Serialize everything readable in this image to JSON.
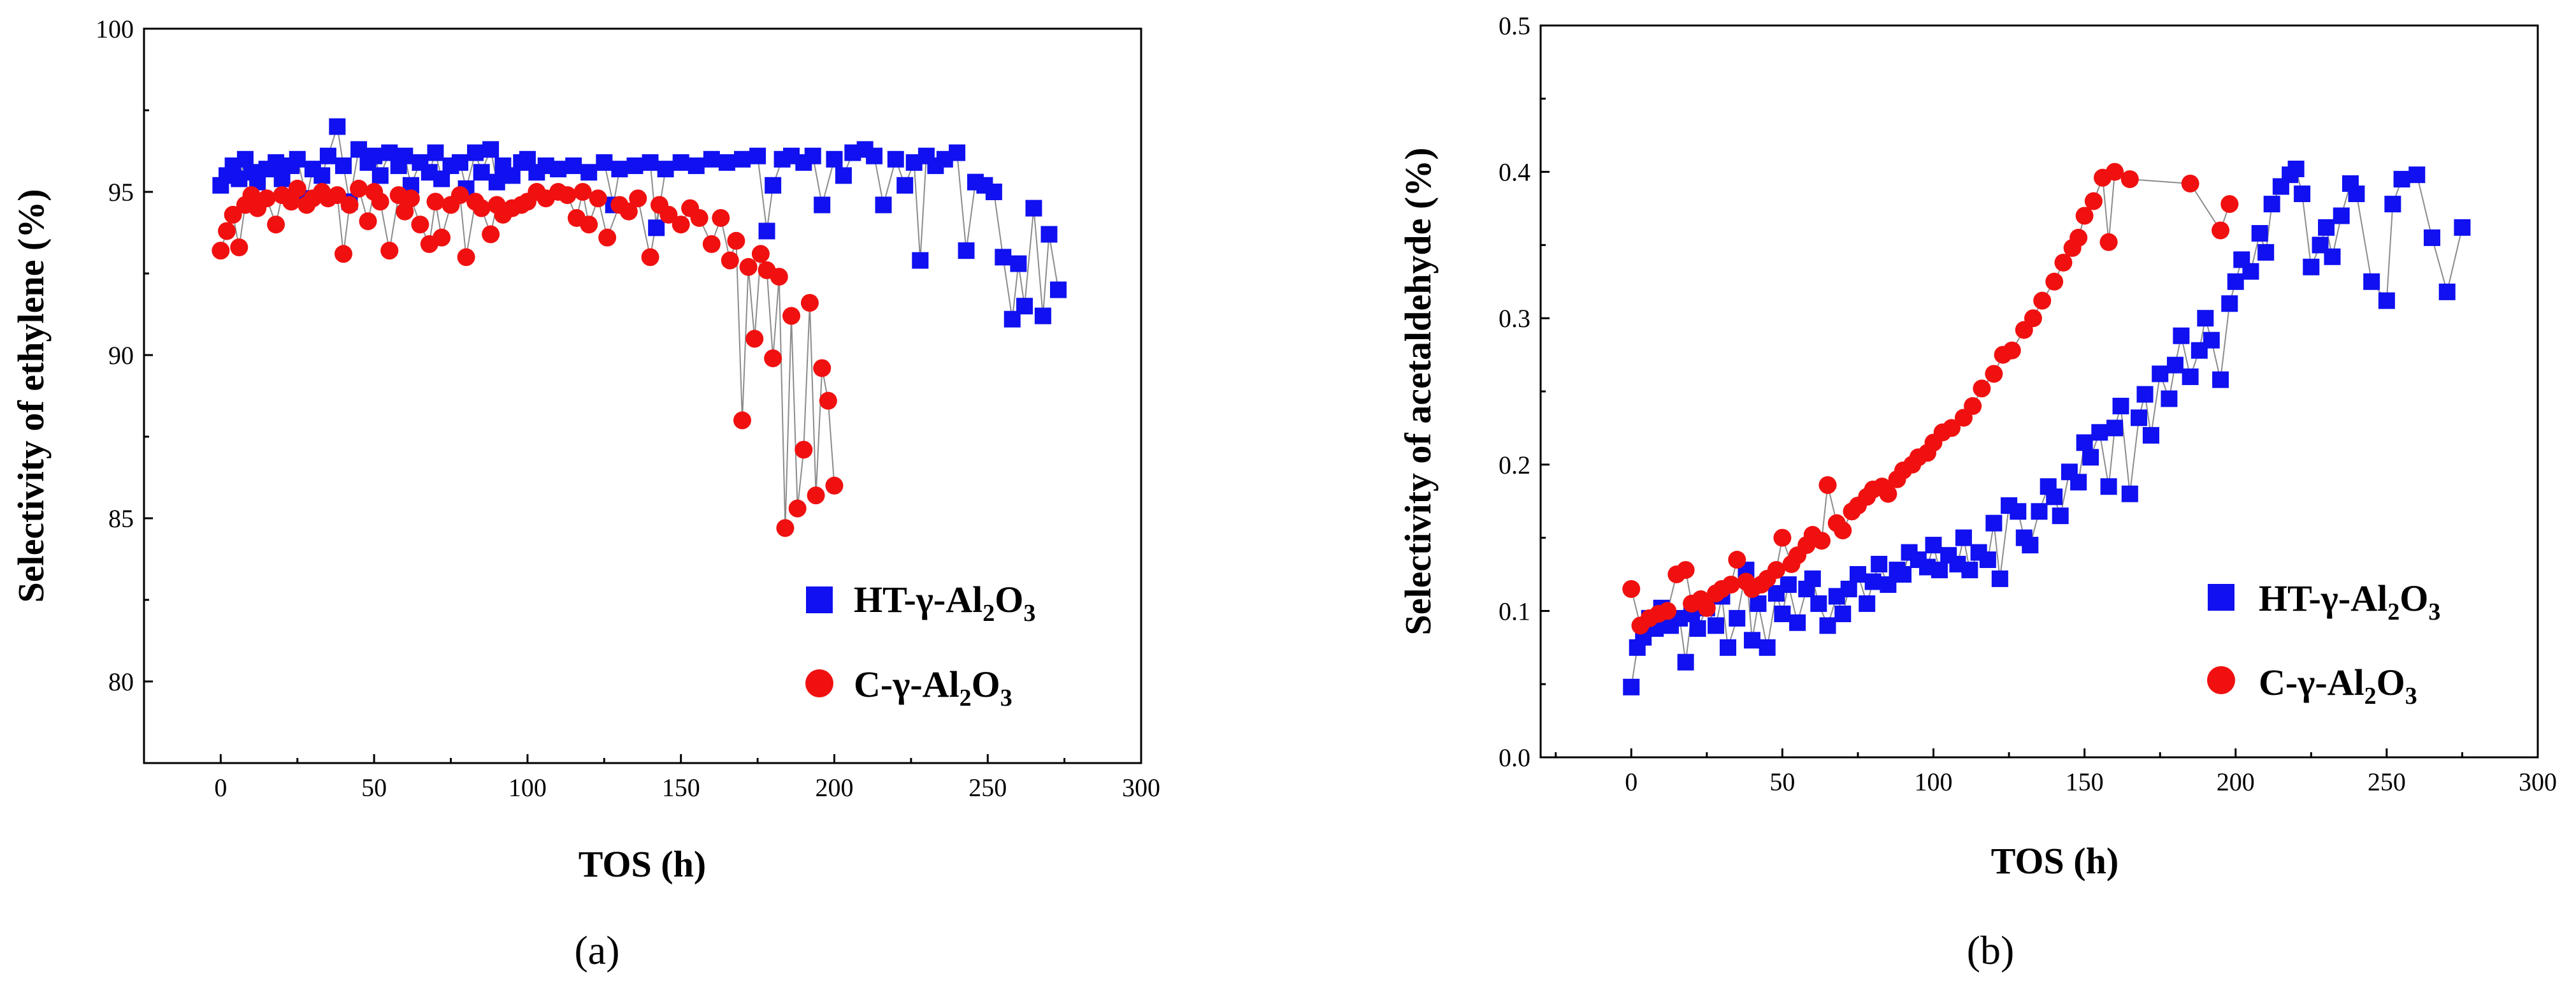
{
  "colors": {
    "blue": "#1010f0",
    "red": "#f01010",
    "line": "#8c8c8c",
    "axis": "#000000"
  },
  "series_info": [
    {
      "key": "ht",
      "label_prefix": "HT-γ-Al",
      "sub1": "2",
      "mid": "O",
      "sub2": "3",
      "marker": "square"
    },
    {
      "key": "c",
      "label_prefix": "C-γ-Al",
      "sub1": "2",
      "mid": "O",
      "sub2": "3",
      "marker": "circle"
    }
  ],
  "captions": [
    {
      "open": "(",
      "letter": "a",
      "close": ")"
    },
    {
      "open": "(",
      "letter": "b",
      "close": ")"
    }
  ],
  "chart_data": [
    {
      "type": "scatter",
      "panel": "a",
      "xlabel": "TOS (h)",
      "ylabel": "Selectivity of ethylene (%)",
      "xlim": [
        -25,
        300
      ],
      "ylim": [
        77.5,
        100
      ],
      "xticks": [
        0,
        50,
        100,
        150,
        200,
        250,
        300
      ],
      "yticks": [
        80,
        85,
        90,
        95,
        100
      ],
      "legend_position": "bottom-right",
      "series": [
        {
          "name": "HT-γ-Al2O3",
          "x": [
            0,
            2,
            4,
            6,
            8,
            10,
            12,
            15,
            18,
            20,
            23,
            25,
            28,
            30,
            33,
            35,
            38,
            40,
            42,
            45,
            48,
            50,
            52,
            55,
            58,
            60,
            62,
            65,
            68,
            70,
            72,
            75,
            78,
            80,
            83,
            85,
            88,
            90,
            92,
            95,
            98,
            100,
            103,
            106,
            110,
            115,
            120,
            125,
            128,
            130,
            135,
            140,
            142,
            145,
            150,
            155,
            160,
            165,
            170,
            175,
            178,
            180,
            183,
            186,
            190,
            193,
            196,
            200,
            203,
            206,
            210,
            213,
            216,
            220,
            223,
            226,
            228,
            230,
            233,
            236,
            240,
            243,
            246,
            249,
            252,
            255,
            258,
            260,
            262,
            265,
            268,
            270,
            273
          ],
          "y": [
            95.2,
            95.5,
            95.8,
            95.4,
            96.0,
            95.6,
            95.3,
            95.7,
            95.9,
            95.4,
            95.8,
            96.0,
            94.8,
            95.7,
            95.5,
            96.1,
            97.0,
            95.8,
            94.7,
            96.3,
            95.9,
            96.1,
            95.5,
            96.2,
            95.8,
            96.1,
            95.2,
            95.9,
            95.6,
            96.2,
            95.4,
            95.8,
            95.9,
            95.1,
            96.2,
            95.6,
            96.3,
            95.3,
            95.8,
            95.5,
            95.9,
            96.0,
            95.6,
            95.8,
            95.7,
            95.8,
            95.6,
            95.9,
            94.6,
            95.7,
            95.8,
            95.9,
            93.9,
            95.7,
            95.9,
            95.8,
            96.0,
            95.9,
            96.0,
            96.1,
            93.8,
            95.2,
            96.0,
            96.1,
            95.9,
            96.1,
            94.6,
            96.0,
            95.5,
            96.2,
            96.3,
            96.1,
            94.6,
            96.0,
            95.2,
            95.9,
            92.9,
            96.1,
            95.8,
            96.0,
            96.2,
            93.2,
            95.3,
            95.2,
            95.0,
            93.0,
            91.1,
            92.8,
            91.5,
            94.5,
            91.2,
            93.7,
            92.0
          ]
        },
        {
          "name": "C-γ-Al2O3",
          "x": [
            0,
            2,
            4,
            6,
            8,
            10,
            12,
            15,
            18,
            20,
            23,
            25,
            28,
            30,
            33,
            35,
            38,
            40,
            42,
            45,
            48,
            50,
            52,
            55,
            58,
            60,
            62,
            65,
            68,
            70,
            72,
            75,
            78,
            80,
            83,
            85,
            88,
            90,
            92,
            95,
            98,
            100,
            103,
            106,
            110,
            113,
            116,
            118,
            120,
            123,
            126,
            130,
            133,
            136,
            140,
            143,
            146,
            150,
            153,
            156,
            160,
            163,
            166,
            168,
            170,
            172,
            174,
            176,
            178,
            180,
            182,
            184,
            186,
            188,
            190,
            192,
            194,
            196,
            198,
            200
          ],
          "y": [
            93.2,
            93.8,
            94.3,
            93.3,
            94.6,
            94.9,
            94.5,
            94.8,
            94.0,
            94.9,
            94.7,
            95.1,
            94.6,
            94.8,
            95.0,
            94.8,
            94.9,
            93.1,
            94.6,
            95.1,
            94.1,
            95.0,
            94.7,
            93.2,
            94.9,
            94.4,
            94.8,
            94.0,
            93.4,
            94.7,
            93.6,
            94.6,
            94.9,
            93.0,
            94.7,
            94.5,
            93.7,
            94.6,
            94.3,
            94.5,
            94.6,
            94.7,
            95.0,
            94.8,
            95.0,
            94.9,
            94.2,
            95.0,
            94.0,
            94.8,
            93.6,
            94.6,
            94.4,
            94.8,
            93.0,
            94.6,
            94.3,
            94.0,
            94.5,
            94.2,
            93.4,
            94.2,
            92.9,
            93.5,
            88.0,
            92.7,
            90.5,
            93.1,
            92.6,
            89.9,
            92.4,
            84.7,
            91.2,
            85.3,
            87.1,
            91.6,
            85.7,
            89.6,
            88.6,
            86.0
          ]
        }
      ]
    },
    {
      "type": "scatter",
      "panel": "b",
      "xlabel": "TOS (h)",
      "ylabel": "Selectivity of acetaldehyde (%)",
      "xlim": [
        -30,
        300
      ],
      "ylim": [
        0.0,
        0.5
      ],
      "xticks": [
        0,
        50,
        100,
        150,
        200,
        250,
        300
      ],
      "yticks": [
        0.0,
        0.1,
        0.2,
        0.3,
        0.4,
        0.5
      ],
      "ytick_labels": [
        "0.0",
        "0.1",
        "0.2",
        "0.3",
        "0.4",
        "0.5"
      ],
      "legend_position": "bottom-right",
      "series": [
        {
          "name": "HT-γ-Al2O3",
          "x": [
            0,
            2,
            4,
            6,
            8,
            10,
            13,
            16,
            18,
            20,
            22,
            25,
            28,
            30,
            32,
            35,
            38,
            40,
            42,
            45,
            48,
            50,
            52,
            55,
            58,
            60,
            62,
            65,
            68,
            70,
            72,
            75,
            78,
            80,
            82,
            85,
            88,
            90,
            92,
            95,
            98,
            100,
            102,
            105,
            108,
            110,
            112,
            115,
            118,
            120,
            122,
            125,
            128,
            130,
            132,
            135,
            138,
            140,
            142,
            145,
            148,
            150,
            152,
            155,
            158,
            160,
            162,
            165,
            168,
            170,
            172,
            175,
            178,
            180,
            182,
            185,
            188,
            190,
            192,
            195,
            198,
            200,
            202,
            205,
            208,
            210,
            212,
            215,
            218,
            220,
            222,
            225,
            228,
            230,
            232,
            235,
            238,
            240,
            245,
            250,
            252,
            255,
            260,
            265,
            270,
            275
          ],
          "y": [
            0.048,
            0.075,
            0.082,
            0.095,
            0.088,
            0.102,
            0.09,
            0.095,
            0.065,
            0.098,
            0.088,
            0.102,
            0.09,
            0.11,
            0.075,
            0.095,
            0.128,
            0.08,
            0.105,
            0.075,
            0.112,
            0.098,
            0.118,
            0.092,
            0.115,
            0.122,
            0.105,
            0.09,
            0.11,
            0.098,
            0.115,
            0.125,
            0.105,
            0.12,
            0.132,
            0.118,
            0.128,
            0.125,
            0.14,
            0.135,
            0.13,
            0.145,
            0.128,
            0.138,
            0.132,
            0.15,
            0.128,
            0.14,
            0.135,
            0.16,
            0.122,
            0.172,
            0.168,
            0.15,
            0.145,
            0.168,
            0.185,
            0.178,
            0.165,
            0.195,
            0.188,
            0.215,
            0.205,
            0.222,
            0.185,
            0.225,
            0.24,
            0.18,
            0.232,
            0.248,
            0.22,
            0.262,
            0.245,
            0.268,
            0.288,
            0.26,
            0.278,
            0.3,
            0.285,
            0.258,
            0.31,
            0.325,
            0.34,
            0.332,
            0.358,
            0.345,
            0.378,
            0.39,
            0.398,
            0.402,
            0.385,
            0.335,
            0.35,
            0.362,
            0.342,
            0.37,
            0.392,
            0.385,
            0.325,
            0.312,
            0.378,
            0.395,
            0.398,
            0.355,
            0.318,
            0.362
          ]
        },
        {
          "name": "C-γ-Al2O3",
          "x": [
            0,
            3,
            6,
            9,
            12,
            15,
            18,
            20,
            23,
            25,
            28,
            30,
            33,
            35,
            38,
            40,
            43,
            45,
            48,
            50,
            53,
            55,
            58,
            60,
            63,
            65,
            68,
            70,
            73,
            75,
            78,
            80,
            83,
            85,
            88,
            90,
            93,
            95,
            98,
            100,
            103,
            106,
            110,
            113,
            116,
            120,
            123,
            126,
            130,
            133,
            136,
            140,
            143,
            146,
            148,
            150,
            153,
            156,
            158,
            160,
            165,
            185,
            195,
            198
          ],
          "y": [
            0.115,
            0.09,
            0.095,
            0.098,
            0.1,
            0.125,
            0.128,
            0.105,
            0.108,
            0.102,
            0.112,
            0.115,
            0.118,
            0.135,
            0.12,
            0.115,
            0.118,
            0.122,
            0.128,
            0.15,
            0.132,
            0.138,
            0.145,
            0.152,
            0.148,
            0.186,
            0.16,
            0.155,
            0.168,
            0.172,
            0.178,
            0.183,
            0.185,
            0.18,
            0.19,
            0.196,
            0.2,
            0.205,
            0.208,
            0.215,
            0.222,
            0.225,
            0.232,
            0.24,
            0.252,
            0.262,
            0.275,
            0.278,
            0.292,
            0.3,
            0.312,
            0.325,
            0.338,
            0.348,
            0.355,
            0.37,
            0.38,
            0.396,
            0.352,
            0.4,
            0.395,
            0.392,
            0.36,
            0.378
          ]
        }
      ]
    }
  ]
}
